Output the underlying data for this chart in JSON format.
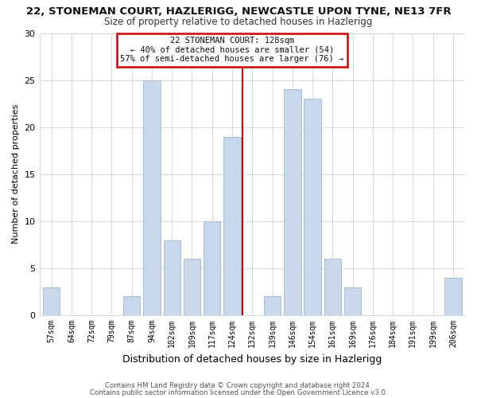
{
  "title": "22, STONEMAN COURT, HAZLERIGG, NEWCASTLE UPON TYNE, NE13 7FR",
  "subtitle": "Size of property relative to detached houses in Hazlerigg",
  "xlabel": "Distribution of detached houses by size in Hazlerigg",
  "ylabel": "Number of detached properties",
  "bar_color": "#c8d8ea",
  "bar_edgecolor": "#a0b8cc",
  "categories": [
    "57sqm",
    "64sqm",
    "72sqm",
    "79sqm",
    "87sqm",
    "94sqm",
    "102sqm",
    "109sqm",
    "117sqm",
    "124sqm",
    "132sqm",
    "139sqm",
    "146sqm",
    "154sqm",
    "161sqm",
    "169sqm",
    "176sqm",
    "184sqm",
    "191sqm",
    "199sqm",
    "206sqm"
  ],
  "values": [
    3,
    0,
    0,
    0,
    2,
    25,
    8,
    6,
    10,
    19,
    0,
    2,
    24,
    23,
    6,
    3,
    0,
    0,
    0,
    0,
    4
  ],
  "vline_color": "#cc0000",
  "annotation_title": "22 STONEMAN COURT: 128sqm",
  "annotation_line1": "← 40% of detached houses are smaller (54)",
  "annotation_line2": "57% of semi-detached houses are larger (76) →",
  "annotation_box_color": "#ffffff",
  "annotation_box_edgecolor": "#cc0000",
  "ylim": [
    0,
    30
  ],
  "yticks": [
    0,
    5,
    10,
    15,
    20,
    25,
    30
  ],
  "footer1": "Contains HM Land Registry data © Crown copyright and database right 2024.",
  "footer2": "Contains public sector information licensed under the Open Government Licence v3.0.",
  "background_color": "#ffffff",
  "grid_color": "#d0d8e4"
}
